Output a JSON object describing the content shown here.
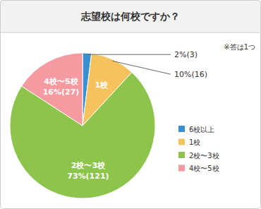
{
  "chart_data": {
    "type": "pie",
    "title": "志望校は何校ですか？",
    "annotations": [
      "※答は1つ"
    ],
    "categories": [
      "6校以上",
      "1校",
      "2校〜3校",
      "4校〜5校"
    ],
    "values": [
      2,
      10,
      73,
      16
    ],
    "value_labels": [
      "2%(3)",
      "10%(16)",
      "73%(121)",
      "16%(27)"
    ],
    "colors": [
      "#3a8fd0",
      "#f5c25e",
      "#8dc44b",
      "#f59aa0"
    ],
    "data_labels": true,
    "legend": "right"
  }
}
